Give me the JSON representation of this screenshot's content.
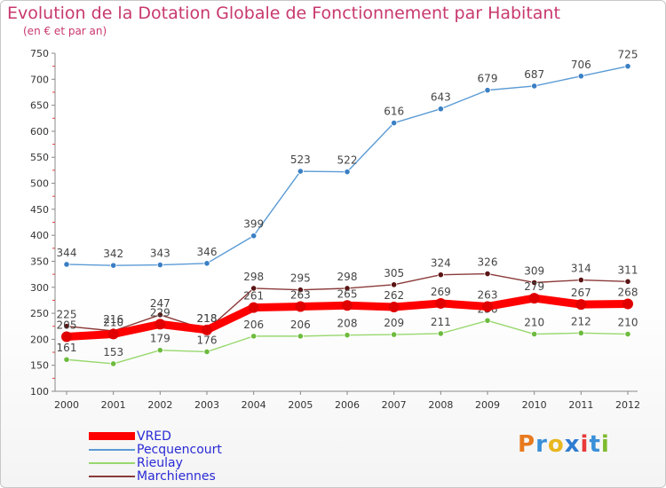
{
  "header": {
    "title": "Evolution de la Dotation Globale de Fonctionnement par Habitant",
    "subtitle": "(en € et par an)"
  },
  "logo": {
    "letters": [
      "P",
      "r",
      "o",
      "x",
      "i",
      "t",
      "i"
    ],
    "colors": [
      "#e87a1e",
      "#3a8fd8",
      "#e8b61e",
      "#2f7bd1",
      "#e83a3a",
      "#3a8fd8",
      "#7dbb2f"
    ]
  },
  "chart_data": {
    "type": "line",
    "title": "Evolution de la Dotation Globale de Fonctionnement par Habitant",
    "subtitle": "(en € et par an)",
    "x": [
      "2000",
      "2001",
      "2002",
      "2003",
      "2004",
      "2005",
      "2006",
      "2007",
      "2008",
      "2009",
      "2010",
      "2011",
      "2012"
    ],
    "ylim": [
      100,
      750
    ],
    "yticks": [
      100,
      150,
      200,
      250,
      300,
      350,
      400,
      450,
      500,
      550,
      600,
      650,
      700,
      750
    ],
    "grid": false,
    "legend": "bottom-left",
    "series": [
      {
        "name": "Pecquencourt",
        "color": "#5b9bd5",
        "marker": "#3a7fc4",
        "values": [
          344,
          342,
          343,
          346,
          399,
          523,
          522,
          616,
          643,
          679,
          687,
          706,
          725
        ],
        "labels": [
          "344",
          "342",
          "343",
          "346",
          "399",
          "523",
          "522",
          "616",
          "643",
          "679",
          "687",
          "706",
          "725"
        ]
      },
      {
        "name": "Rieulay",
        "color": "#98d86e",
        "marker": "#6dbb3e",
        "values": [
          161,
          153,
          179,
          176,
          206,
          206,
          208,
          209,
          211,
          236,
          210,
          212,
          210
        ],
        "labels": [
          "161",
          "153",
          "179",
          "176",
          "206",
          "206",
          "208",
          "209",
          "211",
          "236",
          "210",
          "212",
          "210"
        ]
      },
      {
        "name": "Marchiennes",
        "color": "#8b3a3a",
        "marker": "#5a1414",
        "values": [
          225,
          216,
          247,
          218,
          298,
          295,
          298,
          305,
          324,
          326,
          309,
          314,
          311
        ],
        "labels": [
          "225",
          "216",
          "247",
          "218",
          "298",
          "295",
          "298",
          "305",
          "324",
          "326",
          "309",
          "314",
          "311"
        ]
      },
      {
        "name": "VRED",
        "color": "#ff0000",
        "marker": "#e00000",
        "values": [
          205,
          210,
          229,
          218,
          261,
          263,
          265,
          262,
          269,
          263,
          279,
          267,
          268
        ],
        "labels": [
          "205",
          "210",
          "229",
          "218",
          "261",
          "263",
          "265",
          "262",
          "269",
          "263",
          "279",
          "267",
          "268"
        ]
      }
    ]
  },
  "legend_items": [
    {
      "name": "VRED",
      "color": "#ff0000"
    },
    {
      "name": "Pecquencourt",
      "color": "#5b9bd5"
    },
    {
      "name": "Rieulay",
      "color": "#98d86e"
    },
    {
      "name": "Marchiennes",
      "color": "#8b3a3a"
    }
  ]
}
